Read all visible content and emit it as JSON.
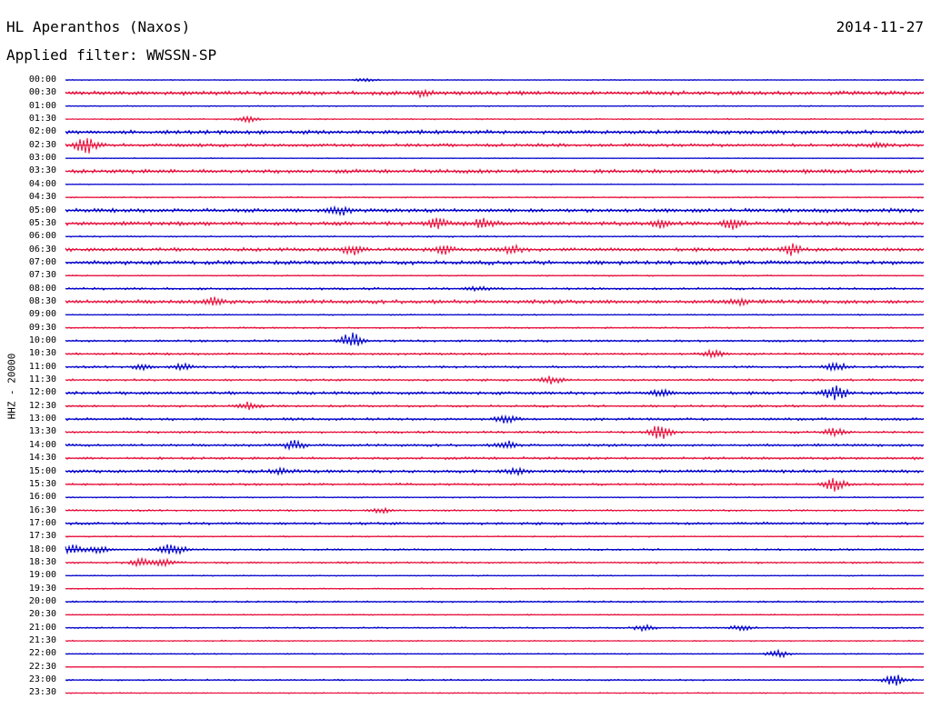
{
  "header": {
    "station": "HL Aperanthos (Naxos)",
    "date": "2014-11-27",
    "filter": "Applied filter: WWSSN-SP"
  },
  "chart_data": {
    "type": "line",
    "title": "HL Aperanthos (Naxos)",
    "subtitle": "Applied filter: WWSSN-SP",
    "ylabel": "HHZ - 20000",
    "rows": [
      "00:00",
      "00:30",
      "01:00",
      "01:30",
      "02:00",
      "02:30",
      "03:00",
      "03:30",
      "04:00",
      "04:30",
      "05:00",
      "05:30",
      "06:00",
      "06:30",
      "07:00",
      "07:30",
      "08:00",
      "08:30",
      "09:00",
      "09:30",
      "10:00",
      "10:30",
      "11:00",
      "11:30",
      "12:00",
      "12:30",
      "13:00",
      "13:30",
      "14:00",
      "14:30",
      "15:00",
      "15:30",
      "16:00",
      "16:30",
      "17:00",
      "17:30",
      "18:00",
      "18:30",
      "19:00",
      "19:30",
      "20:00",
      "20:30",
      "21:00",
      "21:30",
      "22:00",
      "22:30",
      "23:00",
      "23:30"
    ],
    "colors": [
      "#0000cc",
      "#e8103c"
    ],
    "minutes_per_row": 30,
    "noise": [
      0.4,
      1.8,
      0.5,
      0.6,
      1.8,
      1.5,
      0.4,
      1.8,
      0.4,
      0.6,
      1.8,
      1.8,
      0.7,
      1.6,
      1.8,
      0.6,
      1.0,
      1.8,
      0.6,
      0.7,
      1.0,
      1.0,
      1.0,
      1.0,
      1.4,
      1.0,
      1.2,
      1.0,
      1.2,
      1.2,
      1.4,
      1.0,
      0.6,
      0.8,
      1.2,
      0.6,
      0.8,
      0.9,
      0.5,
      0.6,
      0.8,
      0.5,
      0.7,
      0.6,
      0.5,
      0.4,
      0.7,
      0.5
    ],
    "events": [
      {
        "row": 0,
        "minute": 10.5,
        "amp": 2
      },
      {
        "row": 1,
        "minute": 12.5,
        "amp": 3
      },
      {
        "row": 3,
        "minute": 6.4,
        "amp": 3
      },
      {
        "row": 5,
        "minute": 0.7,
        "amp": 9
      },
      {
        "row": 5,
        "minute": 28.4,
        "amp": 2
      },
      {
        "row": 10,
        "minute": 9.6,
        "amp": 4
      },
      {
        "row": 11,
        "minute": 13.0,
        "amp": 5
      },
      {
        "row": 11,
        "minute": 14.6,
        "amp": 5
      },
      {
        "row": 11,
        "minute": 20.8,
        "amp": 4
      },
      {
        "row": 11,
        "minute": 23.3,
        "amp": 5
      },
      {
        "row": 13,
        "minute": 10.0,
        "amp": 5
      },
      {
        "row": 13,
        "minute": 13.2,
        "amp": 4
      },
      {
        "row": 13,
        "minute": 15.6,
        "amp": 4
      },
      {
        "row": 13,
        "minute": 25.4,
        "amp": 5
      },
      {
        "row": 16,
        "minute": 14.4,
        "amp": 2
      },
      {
        "row": 17,
        "minute": 5.2,
        "amp": 4
      },
      {
        "row": 17,
        "minute": 23.5,
        "amp": 3
      },
      {
        "row": 20,
        "minute": 10.0,
        "amp": 8
      },
      {
        "row": 21,
        "minute": 22.6,
        "amp": 4
      },
      {
        "row": 22,
        "minute": 2.7,
        "amp": 3
      },
      {
        "row": 22,
        "minute": 4.1,
        "amp": 3
      },
      {
        "row": 22,
        "minute": 26.9,
        "amp": 5
      },
      {
        "row": 23,
        "minute": 17.0,
        "amp": 4
      },
      {
        "row": 24,
        "minute": 20.8,
        "amp": 3
      },
      {
        "row": 24,
        "minute": 26.9,
        "amp": 8
      },
      {
        "row": 25,
        "minute": 6.4,
        "amp": 4
      },
      {
        "row": 26,
        "minute": 15.4,
        "amp": 4
      },
      {
        "row": 27,
        "minute": 20.8,
        "amp": 9
      },
      {
        "row": 27,
        "minute": 26.9,
        "amp": 4
      },
      {
        "row": 28,
        "minute": 8.0,
        "amp": 5
      },
      {
        "row": 28,
        "minute": 15.4,
        "amp": 4
      },
      {
        "row": 30,
        "minute": 7.5,
        "amp": 3
      },
      {
        "row": 30,
        "minute": 15.8,
        "amp": 3
      },
      {
        "row": 31,
        "minute": 26.9,
        "amp": 7
      },
      {
        "row": 33,
        "minute": 11.0,
        "amp": 3
      },
      {
        "row": 36,
        "minute": 0.3,
        "amp": 5
      },
      {
        "row": 36,
        "minute": 1.2,
        "amp": 4
      },
      {
        "row": 36,
        "minute": 3.5,
        "amp": 4
      },
      {
        "row": 36,
        "minute": 3.9,
        "amp": 5
      },
      {
        "row": 37,
        "minute": 2.6,
        "amp": 4
      },
      {
        "row": 37,
        "minute": 3.4,
        "amp": 4
      },
      {
        "row": 42,
        "minute": 20.2,
        "amp": 3
      },
      {
        "row": 42,
        "minute": 23.6,
        "amp": 3
      },
      {
        "row": 44,
        "minute": 24.9,
        "amp": 4
      },
      {
        "row": 46,
        "minute": 29.0,
        "amp": 8
      }
    ]
  }
}
